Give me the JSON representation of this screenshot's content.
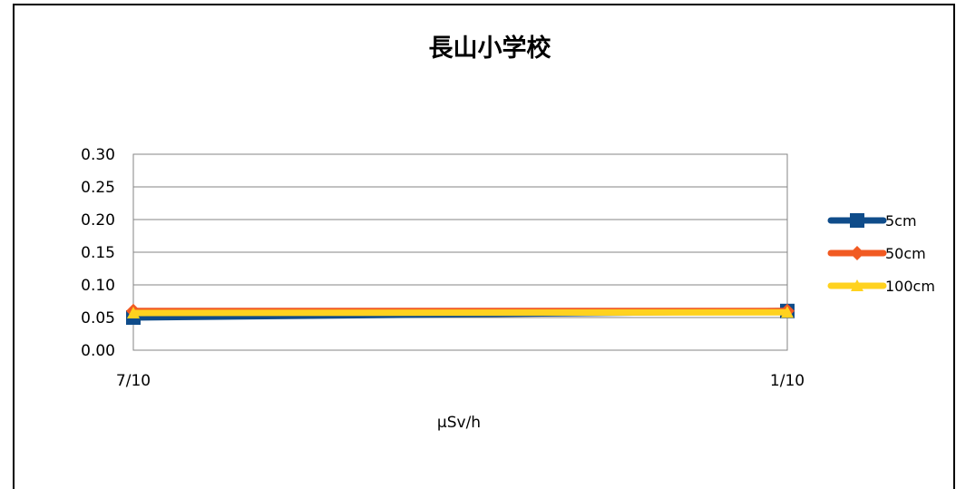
{
  "chart_data": {
    "type": "line",
    "title": "長山小学校",
    "xlabel": "μSv/h",
    "ylabel": "",
    "categories": [
      "7/10",
      "1/10"
    ],
    "ylim": [
      0,
      0.3
    ],
    "yticks": [
      0.0,
      0.05,
      0.1,
      0.15,
      0.2,
      0.25,
      0.3
    ],
    "ytick_labels": [
      "0.00",
      "0.05",
      "0.10",
      "0.15",
      "0.20",
      "0.25",
      "0.30"
    ],
    "grid": true,
    "legend_position": "right",
    "series": [
      {
        "name": "5cm",
        "values": [
          0.05,
          0.06
        ],
        "color": "#0f4c8a",
        "marker": "square"
      },
      {
        "name": "50cm",
        "values": [
          0.06,
          0.06
        ],
        "color": "#f15a22",
        "marker": "diamond"
      },
      {
        "name": "100cm",
        "values": [
          0.057,
          0.058
        ],
        "color": "#ffd21f",
        "marker": "triangle"
      }
    ]
  }
}
